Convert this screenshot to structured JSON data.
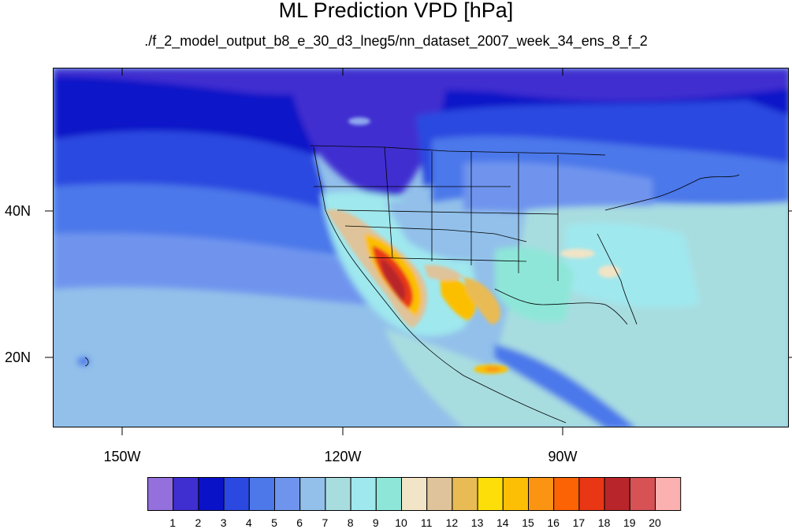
{
  "title": "ML Prediction VPD [hPa]",
  "subtitle": "./f_2_model_output_b8_e_30_d3_lneg5/nn_dataset_2007_week_34_ens_8_f_2",
  "axes": {
    "lat_labels": [
      "40N",
      "20N"
    ],
    "lon_labels": [
      "150W",
      "120W",
      "90W"
    ]
  },
  "colorbar": {
    "labels": [
      "1",
      "2",
      "3",
      "4",
      "5",
      "6",
      "7",
      "8",
      "9",
      "10",
      "11",
      "12",
      "13",
      "14",
      "15",
      "16",
      "17",
      "18",
      "19",
      "20"
    ],
    "colors": [
      "#9370db",
      "#3f2fd0",
      "#0a12c8",
      "#2b48e0",
      "#4c78ea",
      "#6f94ee",
      "#92c0ea",
      "#a8dde0",
      "#9fe8ee",
      "#8ee6d8",
      "#f2e4c6",
      "#dfc39a",
      "#e9bb55",
      "#fdde08",
      "#fcbf05",
      "#fb9412",
      "#fb6305",
      "#e93716",
      "#b8252a",
      "#d65254",
      "#fbb1b0"
    ]
  }
}
